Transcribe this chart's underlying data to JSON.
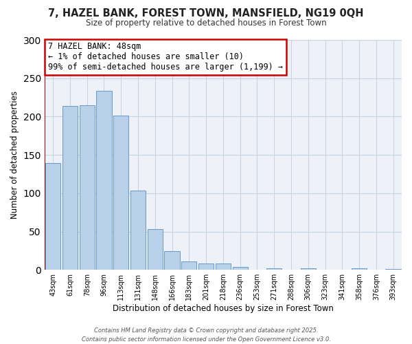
{
  "title": "7, HAZEL BANK, FOREST TOWN, MANSFIELD, NG19 0QH",
  "subtitle": "Size of property relative to detached houses in Forest Town",
  "xlabel": "Distribution of detached houses by size in Forest Town",
  "ylabel": "Number of detached properties",
  "bar_labels": [
    "43sqm",
    "61sqm",
    "78sqm",
    "96sqm",
    "113sqm",
    "131sqm",
    "148sqm",
    "166sqm",
    "183sqm",
    "201sqm",
    "218sqm",
    "236sqm",
    "253sqm",
    "271sqm",
    "288sqm",
    "306sqm",
    "323sqm",
    "341sqm",
    "358sqm",
    "376sqm",
    "393sqm"
  ],
  "bar_values": [
    139,
    214,
    215,
    234,
    201,
    103,
    53,
    24,
    11,
    8,
    8,
    4,
    0,
    2,
    0,
    2,
    0,
    0,
    2,
    0,
    1
  ],
  "bar_color": "#b8d0e8",
  "bar_edge_color": "#6699cc",
  "marker_line_color": "#cc0000",
  "ylim": [
    0,
    300
  ],
  "yticks": [
    0,
    50,
    100,
    150,
    200,
    250,
    300
  ],
  "annotation_title": "7 HAZEL BANK: 48sqm",
  "annotation_line1": "← 1% of detached houses are smaller (10)",
  "annotation_line2": "99% of semi-detached houses are larger (1,199) →",
  "annotation_box_facecolor": "#ffffff",
  "annotation_box_edge_color": "#cc0000",
  "footer_line1": "Contains HM Land Registry data © Crown copyright and database right 2025.",
  "footer_line2": "Contains public sector information licensed under the Open Government Licence v3.0.",
  "background_color": "#ffffff",
  "plot_background_color": "#eef2f8",
  "grid_color": "#c8d4e4"
}
